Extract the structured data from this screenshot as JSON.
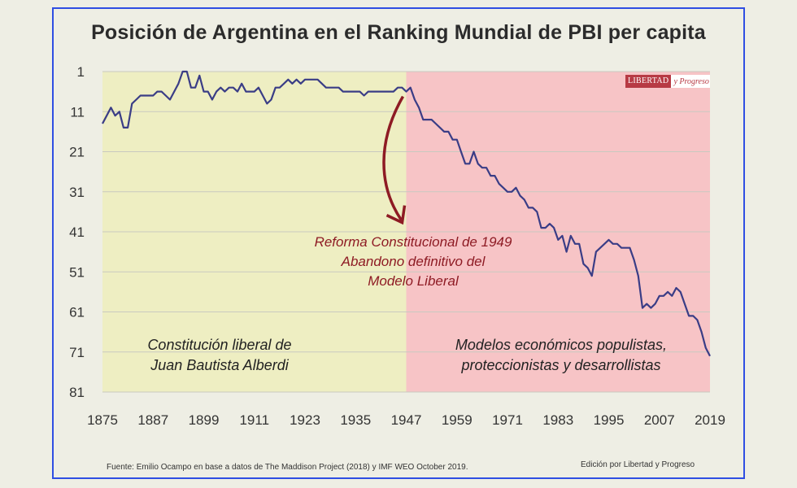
{
  "chart_data": {
    "type": "line",
    "title": "Posición de Argentina en el Ranking Mundial de PBI per capita",
    "xlabel": "",
    "ylabel": "",
    "x_ticks": [
      "1875",
      "1887",
      "1899",
      "1911",
      "1923",
      "1935",
      "1947",
      "1959",
      "1971",
      "1983",
      "1995",
      "2007",
      "2019"
    ],
    "y_ticks": [
      "1",
      "11",
      "21",
      "31",
      "41",
      "51",
      "61",
      "71",
      "81"
    ],
    "xlim": [
      1875,
      2019
    ],
    "ylim": [
      1,
      81
    ],
    "y_inverted": true,
    "regions": [
      {
        "from": 1875,
        "to": 1947,
        "color": "#eeeec2",
        "label_lines": [
          "Constitución liberal de",
          "Juan Bautista Alberdi"
        ]
      },
      {
        "from": 1947,
        "to": 2019,
        "color": "#f7c4c6",
        "label_lines": [
          "Modelos económicos populistas,",
          "proteccionistas y desarrollistas"
        ]
      }
    ],
    "annotation": {
      "lines": [
        "Reforma Constitucional de 1949",
        "Abandono definitivo del",
        "Modelo Liberal"
      ],
      "color": "#8e1b24"
    },
    "series": [
      {
        "name": "Argentina",
        "color": "#3a3d86",
        "x": [
          1875,
          1876,
          1877,
          1878,
          1879,
          1880,
          1881,
          1882,
          1883,
          1884,
          1885,
          1886,
          1887,
          1888,
          1889,
          1890,
          1891,
          1892,
          1893,
          1894,
          1895,
          1896,
          1897,
          1898,
          1899,
          1900,
          1901,
          1902,
          1903,
          1904,
          1905,
          1906,
          1907,
          1908,
          1909,
          1910,
          1911,
          1912,
          1913,
          1914,
          1915,
          1916,
          1917,
          1918,
          1919,
          1920,
          1921,
          1922,
          1923,
          1924,
          1925,
          1926,
          1927,
          1928,
          1929,
          1930,
          1931,
          1932,
          1933,
          1934,
          1935,
          1936,
          1937,
          1938,
          1939,
          1940,
          1941,
          1942,
          1943,
          1944,
          1945,
          1946,
          1947,
          1948,
          1949,
          1950,
          1951,
          1952,
          1953,
          1954,
          1955,
          1956,
          1957,
          1958,
          1959,
          1960,
          1961,
          1962,
          1963,
          1964,
          1965,
          1966,
          1967,
          1968,
          1969,
          1970,
          1971,
          1972,
          1973,
          1974,
          1975,
          1976,
          1977,
          1978,
          1979,
          1980,
          1981,
          1982,
          1983,
          1984,
          1985,
          1986,
          1987,
          1988,
          1989,
          1990,
          1991,
          1992,
          1993,
          1994,
          1995,
          1996,
          1997,
          1998,
          1999,
          2000,
          2001,
          2002,
          2003,
          2004,
          2005,
          2006,
          2007,
          2008,
          2009,
          2010,
          2011,
          2012,
          2013,
          2014,
          2015,
          2016,
          2017,
          2018,
          2019
        ],
        "values": [
          14,
          12,
          10,
          12,
          11,
          15,
          15,
          9,
          8,
          7,
          7,
          7,
          7,
          6,
          6,
          7,
          8,
          6,
          4,
          1,
          1,
          5,
          5,
          2,
          6,
          6,
          8,
          6,
          5,
          6,
          5,
          5,
          6,
          4,
          6,
          6,
          6,
          5,
          7,
          9,
          8,
          5,
          5,
          4,
          3,
          4,
          3,
          4,
          3,
          3,
          3,
          3,
          4,
          5,
          5,
          5,
          5,
          6,
          6,
          6,
          6,
          6,
          7,
          6,
          6,
          6,
          6,
          6,
          6,
          6,
          5,
          5,
          6,
          5,
          8,
          10,
          13,
          13,
          13,
          14,
          15,
          16,
          16,
          18,
          18,
          21,
          24,
          24,
          21,
          24,
          25,
          25,
          27,
          27,
          29,
          30,
          31,
          31,
          30,
          32,
          33,
          35,
          35,
          36,
          40,
          40,
          39,
          40,
          43,
          42,
          46,
          42,
          44,
          44,
          49,
          50,
          52,
          46,
          45,
          44,
          43,
          44,
          44,
          45,
          45,
          45,
          48,
          52,
          60,
          59,
          60,
          59,
          57,
          57,
          56,
          57,
          55,
          56,
          59,
          62,
          62,
          63,
          66,
          70,
          72
        ]
      }
    ]
  },
  "footer": {
    "source": "Fuente: Emilio Ocampo en base a datos de The Maddison Project (2018) y IMF WEO October 2019.",
    "edition": "Edición por Libertad y Progreso"
  },
  "brand": {
    "part1": "LIBERTAD",
    "part2": "y Progreso"
  }
}
